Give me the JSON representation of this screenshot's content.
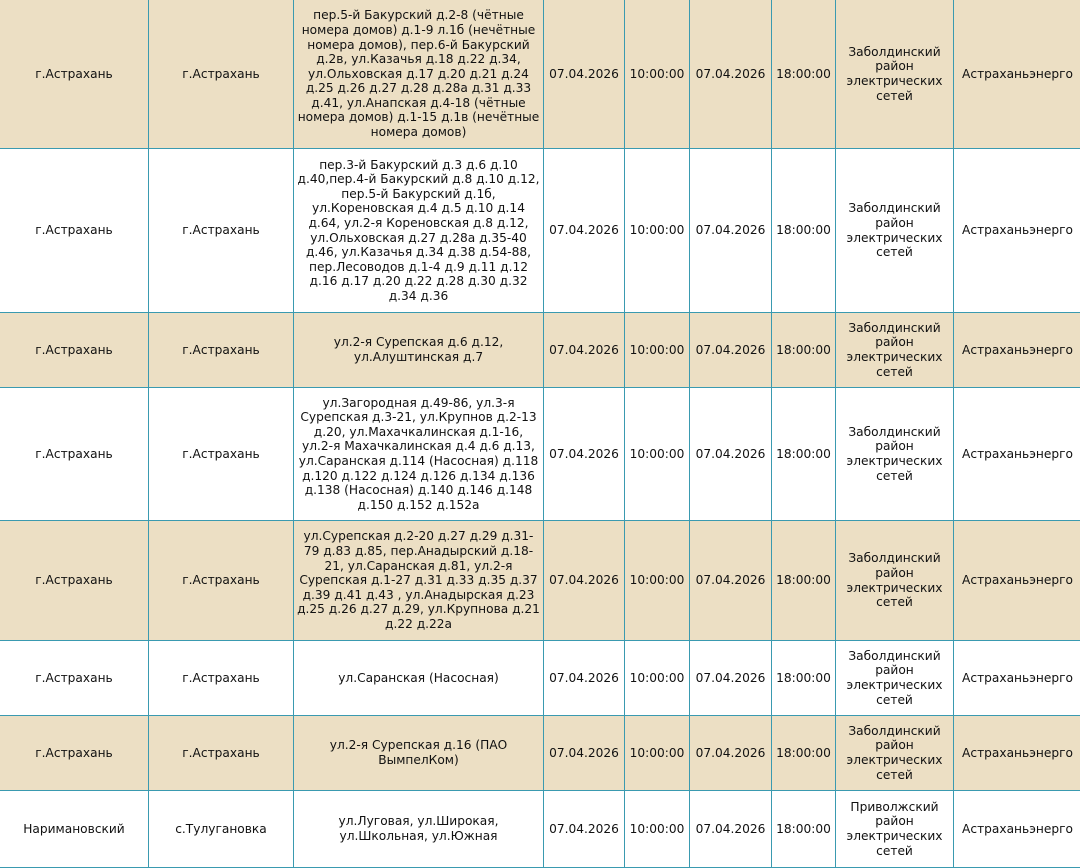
{
  "colors": {
    "alt_row": "#ecdfc4",
    "border": "#3a9ab0"
  },
  "rows": [
    {
      "district": "г.Астрахань",
      "locality": "г.Астрахань",
      "address": "пер.5-й Бакурский д.2-8 (чётные номера домов) д.1-9 л.1б (нечётные номера домов), пер.6-й Бакурский д.2в, ул.Казачья д.18 д.22 д.34, ул.Ольховская д.17 д.20 д.21 д.24 д.25 д.26 д.27 д.28 д.28а д.31 д.33 д.41, ул.Анапская д.4-18 (чётные номера домов) д.1-15 д.1в (нечётные номера домов)",
      "start_date": "07.04.2026",
      "start_time": "10:00:00",
      "end_date": "07.04.2026",
      "end_time": "18:00:00",
      "branch": "Заболдинский район электрических сетей",
      "company": "Астраханьэнерго"
    },
    {
      "district": "г.Астрахань",
      "locality": "г.Астрахань",
      "address": "пер.3-й Бакурский д.3 д.6 д.10 д.40,пер.4-й Бакурский д.8 д.10 д.12, пер.5-й Бакурский д.1б, ул.Кореновская д.4 д.5 д.10 д.14 д.64, ул.2-я Кореновская д.8 д.12, ул.Ольховская д.27 д.28а д.35-40 д.46, ул.Казачья д.34 д.38 д.54-88, пер.Лесоводов д.1-4 д.9 д.11 д.12 д.16 д.17 д.20 д.22 д.28 д.30 д.32 д.34 д.36",
      "start_date": "07.04.2026",
      "start_time": "10:00:00",
      "end_date": "07.04.2026",
      "end_time": "18:00:00",
      "branch": "Заболдинский район электрических сетей",
      "company": "Астраханьэнерго"
    },
    {
      "district": "г.Астрахань",
      "locality": "г.Астрахань",
      "address": "ул.2-я Сурепская д.6 д.12, ул.Алуштинская д.7",
      "start_date": "07.04.2026",
      "start_time": "10:00:00",
      "end_date": "07.04.2026",
      "end_time": "18:00:00",
      "branch": "Заболдинский район электрических сетей",
      "company": "Астраханьэнерго"
    },
    {
      "district": "г.Астрахань",
      "locality": "г.Астрахань",
      "address": "ул.Загородная д.49-86, ул.3-я Сурепская д.3-21, ул.Крупнов д.2-13 д.20, ул.Махачкалинская д.1-16, ул.2-я Махачкалинская д.4 д.6 д.13, ул.Саранская д.114 (Насосная) д.118 д.120 д.122 д.124 д.126 д.134 д.136 д.138 (Насосная) д.140 д.146 д.148 д.150 д.152 д.152а",
      "start_date": "07.04.2026",
      "start_time": "10:00:00",
      "end_date": "07.04.2026",
      "end_time": "18:00:00",
      "branch": "Заболдинский район электрических сетей",
      "company": "Астраханьэнерго"
    },
    {
      "district": "г.Астрахань",
      "locality": "г.Астрахань",
      "address": "ул.Сурепская д.2-20 д.27 д.29 д.31-79 д.83 д.85, пер.Анадырский д.18-21, ул.Саранская д.81, ул.2-я Сурепская д.1-27 д.31 д.33 д.35 д.37 д.39 д.41 д.43 , ул.Анадырская д.23 д.25 д.26 д.27 д.29, ул.Крупнова д.21 д.22 д.22а",
      "start_date": "07.04.2026",
      "start_time": "10:00:00",
      "end_date": "07.04.2026",
      "end_time": "18:00:00",
      "branch": "Заболдинский район электрических сетей",
      "company": "Астраханьэнерго"
    },
    {
      "district": "г.Астрахань",
      "locality": "г.Астрахань",
      "address": "ул.Саранская (Насосная)",
      "start_date": "07.04.2026",
      "start_time": "10:00:00",
      "end_date": "07.04.2026",
      "end_time": "18:00:00",
      "branch": "Заболдинский район электрических сетей",
      "company": "Астраханьэнерго"
    },
    {
      "district": "г.Астрахань",
      "locality": "г.Астрахань",
      "address": "ул.2-я Сурепская д.16 (ПАО ВымпелКом)",
      "start_date": "07.04.2026",
      "start_time": "10:00:00",
      "end_date": "07.04.2026",
      "end_time": "18:00:00",
      "branch": "Заболдинский район электрических сетей",
      "company": "Астраханьэнерго"
    },
    {
      "district": "Наримановский",
      "locality": "с.Тулугановка",
      "address": "ул.Луговая, ул.Широкая, ул.Школьная, ул.Южная",
      "start_date": "07.04.2026",
      "start_time": "10:00:00",
      "end_date": "07.04.2026",
      "end_time": "18:00:00",
      "branch": "Приволжский район электрических сетей",
      "company": "Астраханьэнерго"
    }
  ]
}
